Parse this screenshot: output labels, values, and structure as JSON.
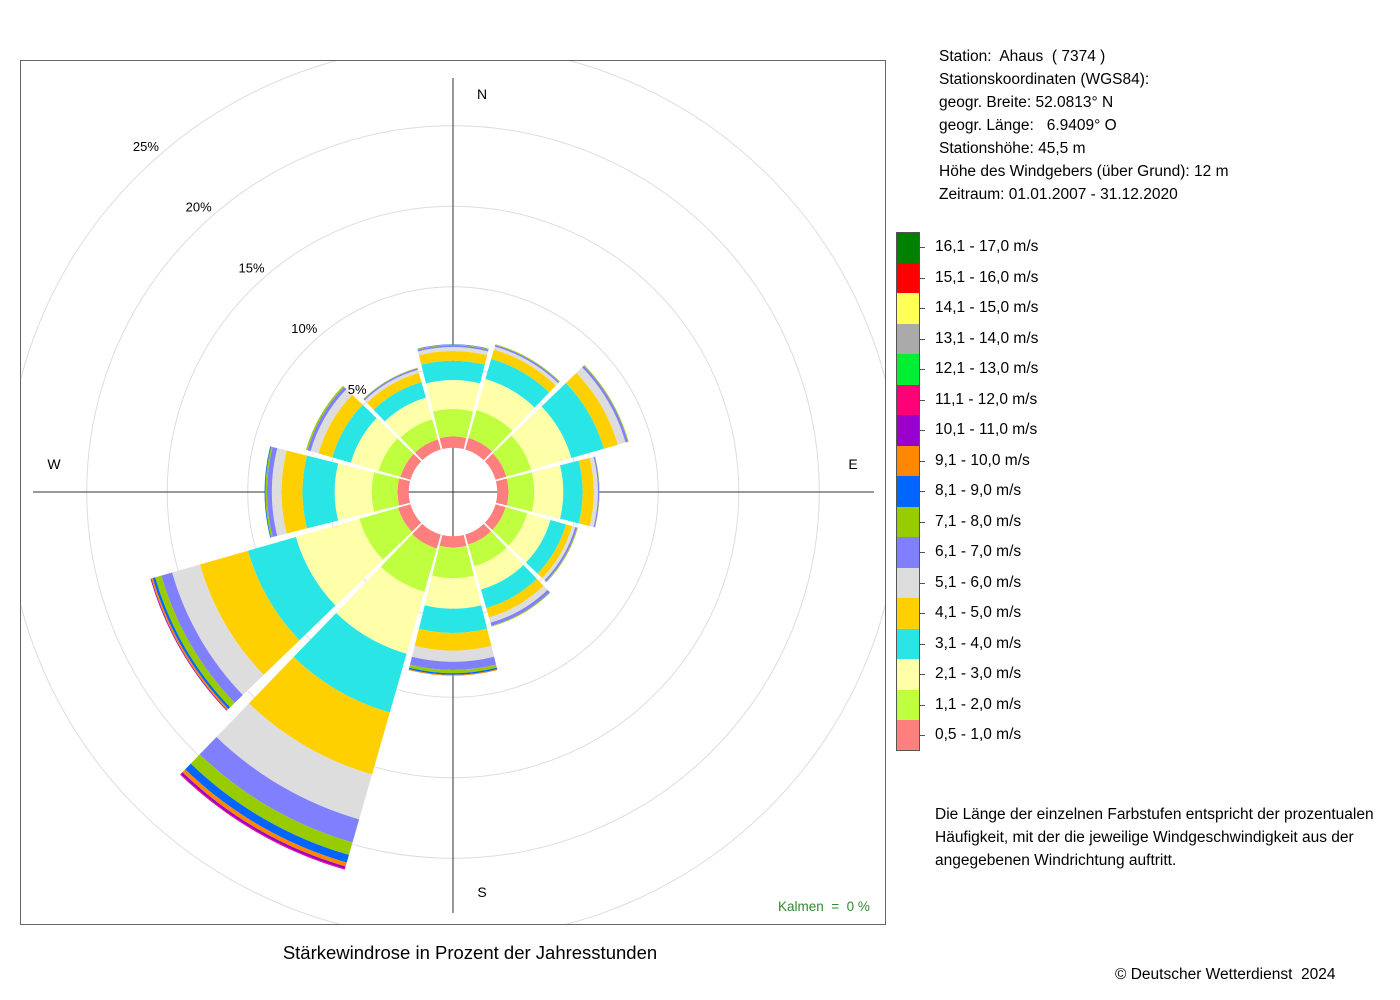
{
  "station_info": [
    "Station:  Ahaus  ( 7374 )",
    "Stationskoordinaten (WGS84):",
    "geogr. Breite: 52.0813° N",
    "geogr. Länge:   6.9409° O",
    "Stationshöhe: 45,5 m",
    "Höhe des Windgebers (über Grund): 12 m",
    "Zeitraum: 01.01.2007 - 31.12.2020"
  ],
  "explanation": "Die Länge der einzelnen Farbstufen entspricht der prozentualen Häufigkeit, mit der die jeweilige Windgeschwindigkeit aus der angegebenen Windrichtung auftritt.",
  "copyright": "© Deutscher Wetterdienst  2024",
  "calm_label": "Kalmen  =  0 %",
  "chart_data": {
    "type": "windrose",
    "title": "Stärkewindrose in Prozent der Jahresstunden",
    "directions_label": [
      "N",
      "E",
      "S",
      "W"
    ],
    "ring_labels": [
      "5%",
      "10%",
      "15%",
      "20%",
      "25%"
    ],
    "ring_values": [
      5,
      10,
      15,
      20,
      25
    ],
    "max_percent": 27.5,
    "core_percent": 2.75,
    "sector_direction_degrees": [
      0,
      30,
      60,
      90,
      120,
      150,
      180,
      210,
      240,
      270,
      300,
      330
    ],
    "speed_classes": [
      {
        "label": "0,5 - 1,0 m/s",
        "color": "#FF7F7F"
      },
      {
        "label": "1,1 - 2,0 m/s",
        "color": "#BFFF3F"
      },
      {
        "label": "2,1 - 3,0 m/s",
        "color": "#FFFFAA"
      },
      {
        "label": "3,1 - 4,0 m/s",
        "color": "#2AE5E5"
      },
      {
        "label": "4,1 - 5,0 m/s",
        "color": "#FFD000"
      },
      {
        "label": "5,1 - 6,0 m/s",
        "color": "#DDDDDD"
      },
      {
        "label": "6,1 - 7,0 m/s",
        "color": "#8080FF"
      },
      {
        "label": "7,1 - 8,0 m/s",
        "color": "#99CC00"
      },
      {
        "label": "8,1 - 9,0 m/s",
        "color": "#0066FF"
      },
      {
        "label": "9,1 - 10,0 m/s",
        "color": "#FF8800"
      },
      {
        "label": "10,1 - 11,0 m/s",
        "color": "#9900CC"
      },
      {
        "label": "11,1 - 12,0 m/s",
        "color": "#FF0077"
      },
      {
        "label": "12,1 - 13,0 m/s",
        "color": "#00EE33"
      },
      {
        "label": "13,1 - 14,0 m/s",
        "color": "#AAAAAA"
      },
      {
        "label": "14,1 - 15,0 m/s",
        "color": "#FFFF55"
      },
      {
        "label": "15,1 - 16,0 m/s",
        "color": "#FF0000"
      },
      {
        "label": "16,1 - 17,0 m/s",
        "color": "#008000"
      }
    ],
    "sectors": [
      {
        "dir": 0,
        "values": [
          0.7,
          1.7,
          1.8,
          1.2,
          0.6,
          0.25,
          0.1,
          0.05,
          0.02
        ]
      },
      {
        "dir": 30,
        "values": [
          0.75,
          1.8,
          2.0,
          1.3,
          0.6,
          0.2,
          0.1,
          0.05
        ]
      },
      {
        "dir": 60,
        "values": [
          0.7,
          1.6,
          2.6,
          2.1,
          0.9,
          0.5,
          0.15,
          0.05
        ]
      },
      {
        "dir": 90,
        "values": [
          0.7,
          1.6,
          1.8,
          1.2,
          0.7,
          0.25,
          0.08,
          0.02
        ]
      },
      {
        "dir": 120,
        "values": [
          0.65,
          1.4,
          1.5,
          1.0,
          0.4,
          0.2,
          0.12,
          0.05
        ]
      },
      {
        "dir": 150,
        "values": [
          0.65,
          1.4,
          1.5,
          1.2,
          0.6,
          0.35,
          0.2,
          0.05
        ]
      },
      {
        "dir": 180,
        "values": [
          0.7,
          1.9,
          1.9,
          1.5,
          1.1,
          0.7,
          0.5,
          0.2,
          0.1,
          0.05
        ]
      },
      {
        "dir": 210,
        "values": [
          0.9,
          2.8,
          4.0,
          3.8,
          4.0,
          2.9,
          1.5,
          0.8,
          0.5,
          0.25,
          0.15,
          0.05
        ]
      },
      {
        "dir": 240,
        "values": [
          0.8,
          2.5,
          4.1,
          3.1,
          3.1,
          1.8,
          0.7,
          0.4,
          0.15,
          0.1,
          0.05
        ]
      },
      {
        "dir": 270,
        "values": [
          0.7,
          1.6,
          2.3,
          2.0,
          1.3,
          0.6,
          0.3,
          0.1,
          0.05
        ]
      },
      {
        "dir": 300,
        "values": [
          0.65,
          1.4,
          1.8,
          1.2,
          0.9,
          0.5,
          0.2,
          0.1
        ]
      },
      {
        "dir": 330,
        "values": [
          0.65,
          1.3,
          1.4,
          1.0,
          0.6,
          0.2,
          0.1,
          0.03
        ]
      }
    ]
  }
}
